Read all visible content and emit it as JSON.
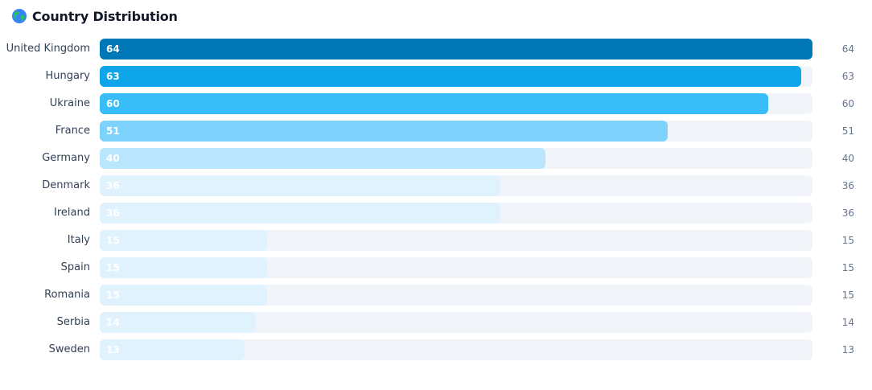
{
  "chart_data": {
    "type": "bar",
    "orientation": "horizontal",
    "title": "Country Distribution",
    "categories": [
      "United Kingdom",
      "Hungary",
      "Ukraine",
      "France",
      "Germany",
      "Denmark",
      "Ireland",
      "Italy",
      "Spain",
      "Romania",
      "Serbia",
      "Sweden"
    ],
    "values": [
      64,
      63,
      60,
      51,
      40,
      36,
      36,
      15,
      15,
      15,
      14,
      13
    ],
    "colors": [
      "#0077b6",
      "#0ea5e9",
      "#38bdf8",
      "#7dd3fc",
      "#bae6fd",
      "#e0f2fe",
      "#e0f2fe",
      "#e0f2fe",
      "#e0f2fe",
      "#e0f2fe",
      "#e0f2fe",
      "#e0f2fe"
    ]
  }
}
